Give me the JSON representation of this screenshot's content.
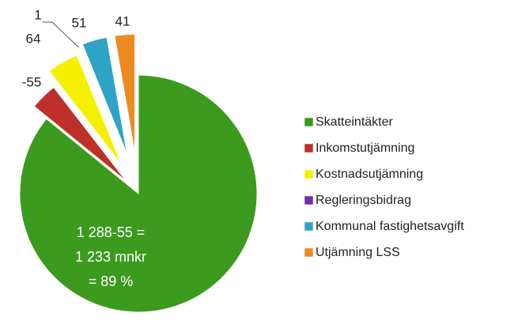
{
  "chart_data": {
    "type": "pie",
    "categories": [
      "Skatteintäkter",
      "Inkomstutjämning",
      "Kostnadsutjämning",
      "Regleringsbidrag",
      "Kommunal fastighetsavgift",
      "Utjämning LSS"
    ],
    "values": [
      1288,
      -55,
      64,
      1,
      51,
      41
    ],
    "colors": [
      "#3c9a1f",
      "#c0302a",
      "#f4f000",
      "#7030a0",
      "#2fa3c6",
      "#ee8a22"
    ],
    "annotation": [
      "1 288-55 =",
      "1 233 mnkr",
      "= 89 %"
    ],
    "legend": "right"
  }
}
